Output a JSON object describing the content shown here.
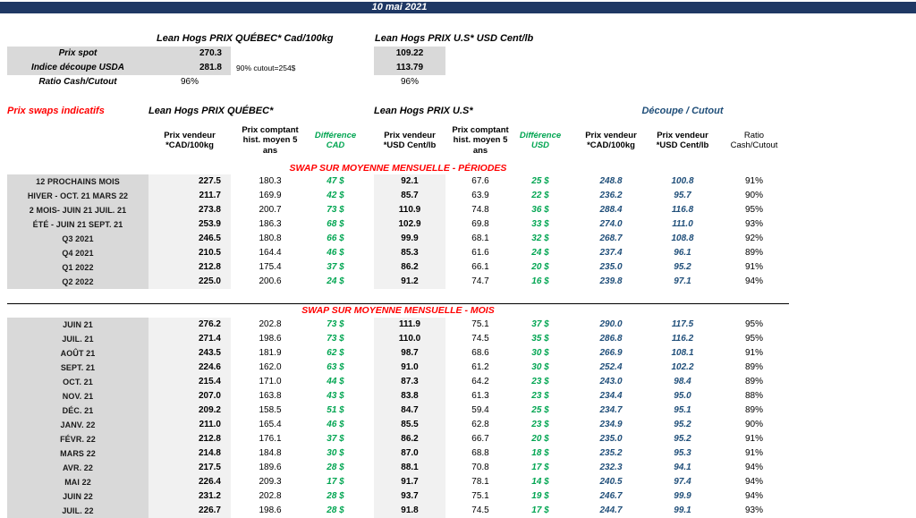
{
  "title_bar": {
    "date": "10 mai 2021"
  },
  "spot": {
    "qc_header": "Lean Hogs PRIX QUÉBEC* Cad/100kg",
    "us_header": "Lean Hogs PRIX U.S* USD Cent/lb",
    "note": "90% cutout=254$",
    "rows": [
      {
        "label": "Prix spot",
        "qc": "270.3",
        "us": "109.22"
      },
      {
        "label": "Indice découpe USDA",
        "qc": "281.8",
        "us": "113.79"
      },
      {
        "label": "Ratio Cash/Cutout",
        "qc": "96%",
        "us": "96%"
      }
    ]
  },
  "swaps": {
    "section_title": "Prix swaps indicatifs",
    "group_qc": "Lean Hogs PRIX QUÉBEC*",
    "group_us": "Lean Hogs PRIX U.S*",
    "group_cutout": "Découpe / Cutout",
    "headers": {
      "qc_sell": "Prix vendeur *CAD/100kg",
      "qc_hist": "Prix comptant hist. moyen 5 ans",
      "diff_cad": "Différence CAD",
      "us_sell": "Prix vendeur *USD Cent/lb",
      "us_hist": "Prix comptant hist. moyen 5 ans",
      "diff_usd": "Différence USD",
      "cut_cad": "Prix vendeur *CAD/100kg",
      "cut_usd": "Prix vendeur *USD Cent/lb",
      "ratio": "Ratio Cash/Cutout"
    },
    "periods_title": "SWAP SUR MOYENNE MENSUELLE - PÉRIODES",
    "months_title": "SWAP SUR MOYENNE MENSUELLE - MOIS",
    "periods": [
      {
        "label": "12 PROCHAINS MOIS",
        "qc_sell": "227.5",
        "qc_hist": "180.3",
        "diff_cad": "47 $",
        "us_sell": "92.1",
        "us_hist": "67.6",
        "diff_usd": "25 $",
        "cut_cad": "248.8",
        "cut_usd": "100.8",
        "ratio": "91%"
      },
      {
        "label": "HIVER - OCT. 21 MARS 22",
        "qc_sell": "211.7",
        "qc_hist": "169.9",
        "diff_cad": "42 $",
        "us_sell": "85.7",
        "us_hist": "63.9",
        "diff_usd": "22 $",
        "cut_cad": "236.2",
        "cut_usd": "95.7",
        "ratio": "90%"
      },
      {
        "label": "2 MOIS- JUIN 21 JUIL. 21",
        "qc_sell": "273.8",
        "qc_hist": "200.7",
        "diff_cad": "73 $",
        "us_sell": "110.9",
        "us_hist": "74.8",
        "diff_usd": "36 $",
        "cut_cad": "288.4",
        "cut_usd": "116.8",
        "ratio": "95%"
      },
      {
        "label": "ÉTÉ - JUIN 21 SEPT. 21",
        "qc_sell": "253.9",
        "qc_hist": "186.3",
        "diff_cad": "68 $",
        "us_sell": "102.9",
        "us_hist": "69.8",
        "diff_usd": "33 $",
        "cut_cad": "274.0",
        "cut_usd": "111.0",
        "ratio": "93%"
      },
      {
        "label": "Q3 2021",
        "qc_sell": "246.5",
        "qc_hist": "180.8",
        "diff_cad": "66 $",
        "us_sell": "99.9",
        "us_hist": "68.1",
        "diff_usd": "32 $",
        "cut_cad": "268.7",
        "cut_usd": "108.8",
        "ratio": "92%"
      },
      {
        "label": "Q4 2021",
        "qc_sell": "210.5",
        "qc_hist": "164.4",
        "diff_cad": "46 $",
        "us_sell": "85.3",
        "us_hist": "61.6",
        "diff_usd": "24 $",
        "cut_cad": "237.4",
        "cut_usd": "96.1",
        "ratio": "89%"
      },
      {
        "label": "Q1 2022",
        "qc_sell": "212.8",
        "qc_hist": "175.4",
        "diff_cad": "37 $",
        "us_sell": "86.2",
        "us_hist": "66.1",
        "diff_usd": "20 $",
        "cut_cad": "235.0",
        "cut_usd": "95.2",
        "ratio": "91%"
      },
      {
        "label": "Q2 2022",
        "qc_sell": "225.0",
        "qc_hist": "200.6",
        "diff_cad": "24 $",
        "us_sell": "91.2",
        "us_hist": "74.7",
        "diff_usd": "16 $",
        "cut_cad": "239.8",
        "cut_usd": "97.1",
        "ratio": "94%"
      }
    ],
    "months": [
      {
        "label": "JUIN 21",
        "qc_sell": "276.2",
        "qc_hist": "202.8",
        "diff_cad": "73 $",
        "us_sell": "111.9",
        "us_hist": "75.1",
        "diff_usd": "37 $",
        "cut_cad": "290.0",
        "cut_usd": "117.5",
        "ratio": "95%"
      },
      {
        "label": "JUIL. 21",
        "qc_sell": "271.4",
        "qc_hist": "198.6",
        "diff_cad": "73 $",
        "us_sell": "110.0",
        "us_hist": "74.5",
        "diff_usd": "35 $",
        "cut_cad": "286.8",
        "cut_usd": "116.2",
        "ratio": "95%"
      },
      {
        "label": "AOÛT 21",
        "qc_sell": "243.5",
        "qc_hist": "181.9",
        "diff_cad": "62 $",
        "us_sell": "98.7",
        "us_hist": "68.6",
        "diff_usd": "30 $",
        "cut_cad": "266.9",
        "cut_usd": "108.1",
        "ratio": "91%"
      },
      {
        "label": "SEPT. 21",
        "qc_sell": "224.6",
        "qc_hist": "162.0",
        "diff_cad": "63 $",
        "us_sell": "91.0",
        "us_hist": "61.2",
        "diff_usd": "30 $",
        "cut_cad": "252.4",
        "cut_usd": "102.2",
        "ratio": "89%"
      },
      {
        "label": "OCT. 21",
        "qc_sell": "215.4",
        "qc_hist": "171.0",
        "diff_cad": "44 $",
        "us_sell": "87.3",
        "us_hist": "64.2",
        "diff_usd": "23 $",
        "cut_cad": "243.0",
        "cut_usd": "98.4",
        "ratio": "89%"
      },
      {
        "label": "NOV. 21",
        "qc_sell": "207.0",
        "qc_hist": "163.8",
        "diff_cad": "43 $",
        "us_sell": "83.8",
        "us_hist": "61.3",
        "diff_usd": "23 $",
        "cut_cad": "234.4",
        "cut_usd": "95.0",
        "ratio": "88%"
      },
      {
        "label": "DÉC. 21",
        "qc_sell": "209.2",
        "qc_hist": "158.5",
        "diff_cad": "51 $",
        "us_sell": "84.7",
        "us_hist": "59.4",
        "diff_usd": "25 $",
        "cut_cad": "234.7",
        "cut_usd": "95.1",
        "ratio": "89%"
      },
      {
        "label": "JANV. 22",
        "qc_sell": "211.0",
        "qc_hist": "165.4",
        "diff_cad": "46 $",
        "us_sell": "85.5",
        "us_hist": "62.8",
        "diff_usd": "23 $",
        "cut_cad": "234.9",
        "cut_usd": "95.2",
        "ratio": "90%"
      },
      {
        "label": "FÉVR. 22",
        "qc_sell": "212.8",
        "qc_hist": "176.1",
        "diff_cad": "37 $",
        "us_sell": "86.2",
        "us_hist": "66.7",
        "diff_usd": "20 $",
        "cut_cad": "235.0",
        "cut_usd": "95.2",
        "ratio": "91%"
      },
      {
        "label": "MARS 22",
        "qc_sell": "214.8",
        "qc_hist": "184.8",
        "diff_cad": "30 $",
        "us_sell": "87.0",
        "us_hist": "68.8",
        "diff_usd": "18 $",
        "cut_cad": "235.2",
        "cut_usd": "95.3",
        "ratio": "91%"
      },
      {
        "label": "AVR. 22",
        "qc_sell": "217.5",
        "qc_hist": "189.6",
        "diff_cad": "28 $",
        "us_sell": "88.1",
        "us_hist": "70.8",
        "diff_usd": "17 $",
        "cut_cad": "232.3",
        "cut_usd": "94.1",
        "ratio": "94%"
      },
      {
        "label": "MAI 22",
        "qc_sell": "226.4",
        "qc_hist": "209.3",
        "diff_cad": "17 $",
        "us_sell": "91.7",
        "us_hist": "78.1",
        "diff_usd": "14 $",
        "cut_cad": "240.5",
        "cut_usd": "97.4",
        "ratio": "94%"
      },
      {
        "label": "JUIN 22",
        "qc_sell": "231.2",
        "qc_hist": "202.8",
        "diff_cad": "28 $",
        "us_sell": "93.7",
        "us_hist": "75.1",
        "diff_usd": "19 $",
        "cut_cad": "246.7",
        "cut_usd": "99.9",
        "ratio": "94%"
      },
      {
        "label": "JUIL. 22",
        "qc_sell": "226.7",
        "qc_hist": "198.6",
        "diff_cad": "28 $",
        "us_sell": "91.8",
        "us_hist": "74.5",
        "diff_usd": "17 $",
        "cut_cad": "244.7",
        "cut_usd": "99.1",
        "ratio": "93%"
      }
    ]
  }
}
